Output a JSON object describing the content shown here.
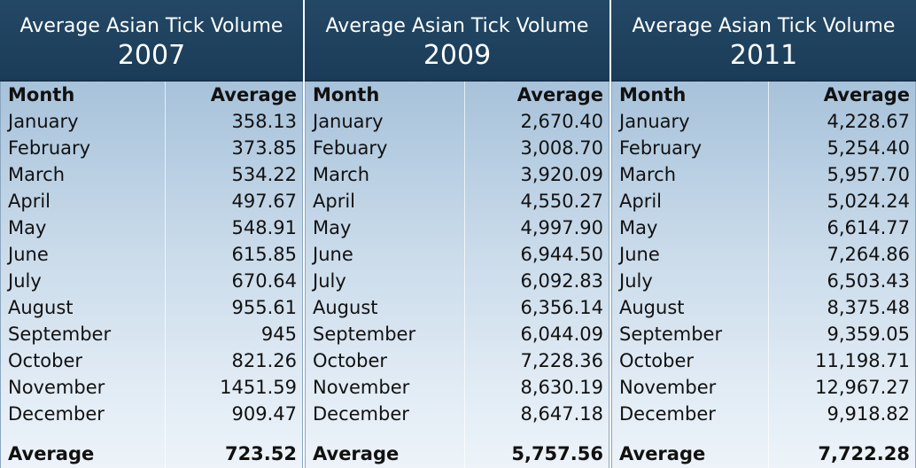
{
  "chart_data": [
    {
      "type": "table",
      "title": "Average Asian Tick Volume",
      "subtitle": "2007",
      "columns": [
        "Month",
        "Average"
      ],
      "rows": [
        [
          "January",
          "358.13"
        ],
        [
          "February",
          "373.85"
        ],
        [
          "March",
          "534.22"
        ],
        [
          "April",
          "497.67"
        ],
        [
          "May",
          "548.91"
        ],
        [
          "June",
          "615.85"
        ],
        [
          "July",
          "670.64"
        ],
        [
          "August",
          "955.61"
        ],
        [
          "September",
          "945"
        ],
        [
          "October",
          "821.26"
        ],
        [
          "November",
          "1451.59"
        ],
        [
          "December",
          "909.47"
        ]
      ],
      "footer": [
        "Average",
        "723.52"
      ]
    },
    {
      "type": "table",
      "title": "Average Asian Tick Volume",
      "subtitle": "2009",
      "columns": [
        "Month",
        "Average"
      ],
      "rows": [
        [
          "January",
          "2,670.40"
        ],
        [
          "Febuary",
          "3,008.70"
        ],
        [
          "March",
          "3,920.09"
        ],
        [
          "April",
          "4,550.27"
        ],
        [
          "May",
          "4,997.90"
        ],
        [
          "June",
          "6,944.50"
        ],
        [
          "July",
          "6,092.83"
        ],
        [
          "August",
          "6,356.14"
        ],
        [
          "September",
          "6,044.09"
        ],
        [
          "October",
          "7,228.36"
        ],
        [
          "November",
          "8,630.19"
        ],
        [
          "December",
          "8,647.18"
        ]
      ],
      "footer": [
        "Average",
        "5,757.56"
      ]
    },
    {
      "type": "table",
      "title": "Average Asian Tick Volume",
      "subtitle": "2011",
      "columns": [
        "Month",
        "Average"
      ],
      "rows": [
        [
          "January",
          "4,228.67"
        ],
        [
          "February",
          "5,254.40"
        ],
        [
          "March",
          "5,957.70"
        ],
        [
          "April",
          "5,024.24"
        ],
        [
          "May",
          "6,614.77"
        ],
        [
          "June",
          "7,264.86"
        ],
        [
          "July",
          "6,503.43"
        ],
        [
          "August",
          "8,375.48"
        ],
        [
          "September",
          "9,359.05"
        ],
        [
          "October",
          "11,198.71"
        ],
        [
          "November",
          "12,967.27"
        ],
        [
          "December",
          "9,918.82"
        ]
      ],
      "footer": [
        "Average",
        "7,722.28"
      ]
    }
  ],
  "colors": {
    "header_bg": "#1f4260",
    "header_text": "#ffffff",
    "body_gradient_top": "#a7c2da",
    "body_gradient_bottom": "#edf3f9",
    "text": "#111111"
  }
}
